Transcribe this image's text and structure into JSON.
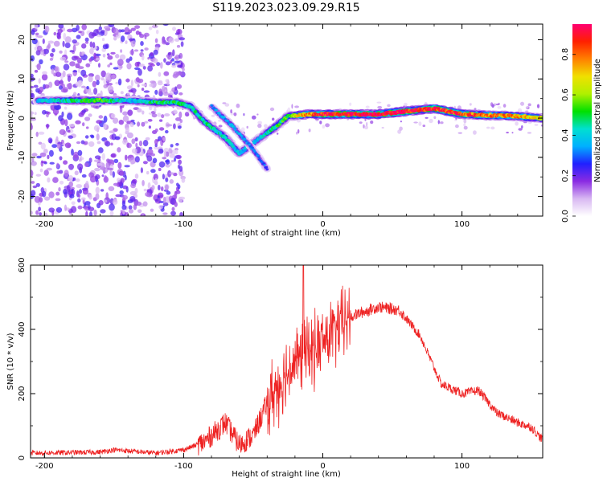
{
  "title": "S119.2023.023.09.29.R15",
  "chart_data": [
    {
      "type": "heatmap",
      "xlabel": "Height of straight line (km)",
      "ylabel": "Frequency (Hz)",
      "xlim": [
        -210,
        158
      ],
      "ylim": [
        -25,
        24
      ],
      "xticks": [
        -200,
        -100,
        0,
        100
      ],
      "yticks": [
        -20,
        -10,
        0,
        10,
        20
      ],
      "colorbar": {
        "label": "Normalized spectral amplitude",
        "range": [
          0,
          0.95
        ],
        "ticks": [
          0.0,
          0.2,
          0.4,
          0.6,
          0.8
        ],
        "colors": [
          "#ffffff",
          "#d8b8f2",
          "#8a2be2",
          "#2020ff",
          "#00b0ff",
          "#00e0d0",
          "#00e000",
          "#b0f000",
          "#f0e000",
          "#ff8000",
          "#ff2000",
          "#ff0070"
        ]
      },
      "ridge": [
        {
          "x": -205,
          "freq": 4.5,
          "amp": 0.35
        },
        {
          "x": -160,
          "freq": 4.5,
          "amp": 0.5
        },
        {
          "x": -140,
          "freq": 4.5,
          "amp": 0.35
        },
        {
          "x": -120,
          "freq": 4.0,
          "amp": 0.45
        },
        {
          "x": -105,
          "freq": 4.0,
          "amp": 0.45
        },
        {
          "x": -95,
          "freq": 3.0,
          "amp": 0.4
        },
        {
          "x": -85,
          "freq": -1.0,
          "amp": 0.45
        },
        {
          "x": -70,
          "freq": -5.0,
          "amp": 0.4
        },
        {
          "x": -60,
          "freq": -9.0,
          "amp": 0.35
        },
        {
          "x": -45,
          "freq": -5.0,
          "amp": 0.35
        },
        {
          "x": -35,
          "freq": -2.5,
          "amp": 0.45
        },
        {
          "x": -25,
          "freq": 0.5,
          "amp": 0.5
        },
        {
          "x": -10,
          "freq": 1.0,
          "amp": 0.75
        },
        {
          "x": 0,
          "freq": 1.0,
          "amp": 0.85
        },
        {
          "x": 40,
          "freq": 1.0,
          "amp": 0.9
        },
        {
          "x": 80,
          "freq": 2.5,
          "amp": 0.85
        },
        {
          "x": 100,
          "freq": 1.0,
          "amp": 0.8
        },
        {
          "x": 140,
          "freq": 0.5,
          "amp": 0.7
        },
        {
          "x": 158,
          "freq": 0.0,
          "amp": 0.65
        }
      ],
      "secondary_ridge": [
        {
          "x": -80,
          "freq": 3.0,
          "amp": 0.3
        },
        {
          "x": -65,
          "freq": -2.0,
          "amp": 0.35
        },
        {
          "x": -50,
          "freq": -8.0,
          "amp": 0.3
        },
        {
          "x": -40,
          "freq": -13.0,
          "amp": 0.25
        }
      ],
      "scatter_noise": {
        "x_range": [
          -210,
          -100
        ],
        "freq_range": [
          -25,
          24
        ],
        "amp": 0.2
      }
    },
    {
      "type": "line",
      "xlabel": "Height of straight line (km)",
      "ylabel": "SNR (10 * v/v)",
      "xlim": [
        -210,
        158
      ],
      "ylim": [
        0,
        600
      ],
      "xticks": [
        -200,
        -100,
        0,
        100
      ],
      "yticks": [
        0,
        200,
        400,
        600
      ],
      "color": "#ee2222",
      "envelope": [
        {
          "x": -210,
          "y": 15
        },
        {
          "x": -160,
          "y": 18
        },
        {
          "x": -150,
          "y": 25
        },
        {
          "x": -120,
          "y": 15
        },
        {
          "x": -100,
          "y": 25
        },
        {
          "x": -85,
          "y": 50
        },
        {
          "x": -70,
          "y": 110
        },
        {
          "x": -60,
          "y": 40
        },
        {
          "x": -50,
          "y": 70
        },
        {
          "x": -40,
          "y": 170
        },
        {
          "x": -30,
          "y": 240
        },
        {
          "x": -20,
          "y": 300
        },
        {
          "x": -10,
          "y": 330
        },
        {
          "x": 0,
          "y": 360
        },
        {
          "x": 20,
          "y": 440
        },
        {
          "x": 40,
          "y": 470
        },
        {
          "x": 55,
          "y": 460
        },
        {
          "x": 70,
          "y": 380
        },
        {
          "x": 85,
          "y": 230
        },
        {
          "x": 100,
          "y": 200
        },
        {
          "x": 112,
          "y": 210
        },
        {
          "x": 125,
          "y": 140
        },
        {
          "x": 140,
          "y": 110
        },
        {
          "x": 150,
          "y": 95
        },
        {
          "x": 158,
          "y": 55
        }
      ],
      "spike": {
        "x": -14,
        "y": 600
      }
    }
  ]
}
